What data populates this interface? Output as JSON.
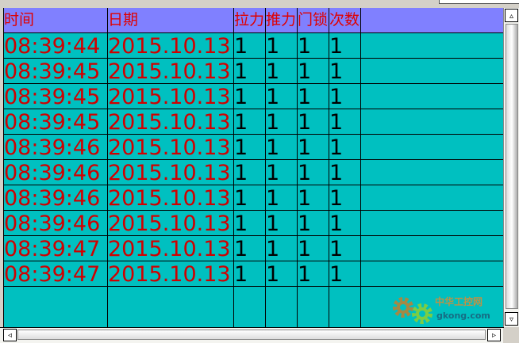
{
  "columns": [
    "时间",
    "日期",
    "拉力",
    "推力",
    "门锁",
    "次数"
  ],
  "rows": [
    [
      "08:39:44",
      "2015.10.13",
      "1",
      "1",
      "1",
      "1"
    ],
    [
      "08:39:45",
      "2015.10.13",
      "1",
      "1",
      "1",
      "1"
    ],
    [
      "08:39:45",
      "2015.10.13",
      "1",
      "1",
      "1",
      "1"
    ],
    [
      "08:39:45",
      "2015.10.13",
      "1",
      "1",
      "1",
      "1"
    ],
    [
      "08:39:46",
      "2015.10.13",
      "1",
      "1",
      "1",
      "1"
    ],
    [
      "08:39:46",
      "2015.10.13",
      "1",
      "1",
      "1",
      "1"
    ],
    [
      "08:39:46",
      "2015.10.13",
      "1",
      "1",
      "1",
      "1"
    ],
    [
      "08:39:46",
      "2015.10.13",
      "1",
      "1",
      "1",
      "1"
    ],
    [
      "08:39:47",
      "2015.10.13",
      "1",
      "1",
      "1",
      "1"
    ],
    [
      "08:39:47",
      "2015.10.13",
      "1",
      "1",
      "1",
      "1"
    ]
  ],
  "watermark": {
    "text_cn": "中华工控网",
    "text_en": "gkong.com"
  },
  "scroll_icons": {
    "up": "▵",
    "down": "▿",
    "left": "◃",
    "right": "▹"
  },
  "colors": {
    "header_bg": "#8080ff",
    "grid_bg": "#00c0c0",
    "text_red": "#d00000"
  }
}
